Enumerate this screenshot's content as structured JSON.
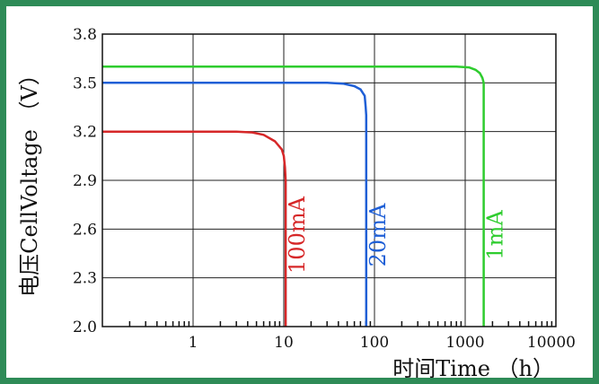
{
  "chart_data": {
    "type": "line",
    "title": "",
    "xlabel": "时间Time （h）",
    "ylabel": "电压CellVoltage （V）",
    "x_scale": "log",
    "xlim": [
      0.1,
      10000
    ],
    "ylim": [
      2.0,
      3.8
    ],
    "x_ticks": [
      "1",
      "10",
      "100",
      "1000",
      "10000"
    ],
    "y_ticks": [
      "2.0",
      "2.3",
      "2.6",
      "2.9",
      "3.2",
      "3.5",
      "3.8"
    ],
    "grid": true,
    "series": [
      {
        "name": "100mA",
        "color": "#d62728",
        "x": [
          0.1,
          1,
          3,
          4.5,
          6,
          8,
          9.5,
          10,
          10.3,
          10.5,
          10.5
        ],
        "y": [
          3.2,
          3.2,
          3.2,
          3.195,
          3.18,
          3.14,
          3.09,
          3.05,
          2.98,
          2.9,
          2.0
        ]
      },
      {
        "name": "20mA",
        "color": "#1f5fd6",
        "x": [
          0.1,
          10,
          30,
          45,
          60,
          70,
          78,
          80,
          81,
          81,
          81
        ],
        "y": [
          3.5,
          3.5,
          3.5,
          3.495,
          3.48,
          3.46,
          3.42,
          3.35,
          3.3,
          3.2,
          2.0
        ]
      },
      {
        "name": "1mA",
        "color": "#2ecc2e",
        "x": [
          0.1,
          100,
          800,
          1100,
          1300,
          1450,
          1550,
          1600,
          1600
        ],
        "y": [
          3.6,
          3.6,
          3.6,
          3.595,
          3.58,
          3.56,
          3.53,
          3.5,
          2.0
        ]
      }
    ]
  }
}
